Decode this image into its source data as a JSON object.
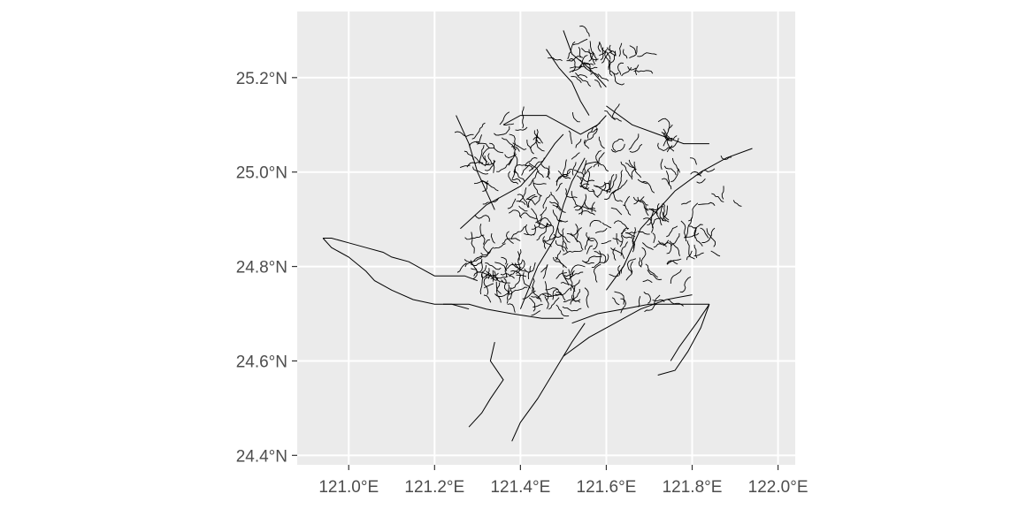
{
  "map": {
    "type": "river-network",
    "extent": {
      "lon": [
        120.88,
        122.04
      ],
      "lat": [
        24.38,
        25.34
      ]
    },
    "panel_background": "#ebebeb",
    "grid_color": "#ffffff",
    "line_color": "#000000"
  },
  "axes": {
    "x_ticks": [
      {
        "value": 121.0,
        "label": "121.0°E"
      },
      {
        "value": 121.2,
        "label": "121.2°E"
      },
      {
        "value": 121.4,
        "label": "121.4°E"
      },
      {
        "value": 121.6,
        "label": "121.6°E"
      },
      {
        "value": 121.8,
        "label": "121.8°E"
      },
      {
        "value": 122.0,
        "label": "122.0°E"
      }
    ],
    "y_ticks": [
      {
        "value": 24.4,
        "label": "24.4°N"
      },
      {
        "value": 24.6,
        "label": "24.6°N"
      },
      {
        "value": 24.8,
        "label": "24.8°N"
      },
      {
        "value": 25.0,
        "label": "25.0°N"
      },
      {
        "value": 25.2,
        "label": "25.2°N"
      }
    ]
  },
  "rivers": [
    {
      "name": "",
      "points": [
        [
          120.94,
          24.86
        ],
        [
          120.96,
          24.86
        ],
        [
          121.0,
          24.85
        ],
        [
          121.04,
          24.84
        ],
        [
          121.08,
          24.83
        ],
        [
          121.1,
          24.82
        ],
        [
          121.14,
          24.81
        ],
        [
          121.18,
          24.79
        ],
        [
          121.2,
          24.78
        ],
        [
          121.22,
          24.78
        ],
        [
          121.27,
          24.78
        ],
        [
          121.3,
          24.77
        ]
      ]
    },
    {
      "name": "",
      "points": [
        [
          120.94,
          24.86
        ],
        [
          120.96,
          24.84
        ],
        [
          121.0,
          24.82
        ],
        [
          121.04,
          24.79
        ],
        [
          121.06,
          24.77
        ],
        [
          121.1,
          24.75
        ],
        [
          121.15,
          24.73
        ],
        [
          121.2,
          24.72
        ],
        [
          121.24,
          24.72
        ],
        [
          121.28,
          24.71
        ]
      ]
    },
    {
      "name": "",
      "points": [
        [
          121.22,
          24.72
        ],
        [
          121.28,
          24.72
        ],
        [
          121.32,
          24.71
        ],
        [
          121.38,
          24.7
        ],
        [
          121.45,
          24.69
        ],
        [
          121.5,
          24.69
        ]
      ]
    },
    {
      "name": "",
      "points": [
        [
          121.34,
          24.64
        ],
        [
          121.33,
          24.6
        ],
        [
          121.36,
          24.56
        ],
        [
          121.33,
          24.52
        ],
        [
          121.31,
          24.49
        ],
        [
          121.28,
          24.46
        ]
      ]
    },
    {
      "name": "",
      "points": [
        [
          121.55,
          24.68
        ],
        [
          121.52,
          24.64
        ],
        [
          121.48,
          24.58
        ],
        [
          121.44,
          24.52
        ],
        [
          121.4,
          24.47
        ],
        [
          121.38,
          24.43
        ]
      ]
    },
    {
      "name": "",
      "points": [
        [
          121.52,
          24.68
        ],
        [
          121.58,
          24.7
        ],
        [
          121.64,
          24.71
        ],
        [
          121.7,
          24.72
        ],
        [
          121.76,
          24.72
        ],
        [
          121.84,
          24.72
        ]
      ]
    },
    {
      "name": "",
      "points": [
        [
          121.84,
          24.72
        ],
        [
          121.82,
          24.67
        ],
        [
          121.79,
          24.62
        ],
        [
          121.76,
          24.58
        ],
        [
          121.72,
          24.57
        ]
      ]
    },
    {
      "name": "",
      "points": [
        [
          121.84,
          24.72
        ],
        [
          121.81,
          24.68
        ],
        [
          121.77,
          24.63
        ],
        [
          121.75,
          24.6
        ]
      ]
    },
    {
      "name": "",
      "points": [
        [
          121.5,
          24.61
        ],
        [
          121.56,
          24.65
        ],
        [
          121.62,
          24.68
        ],
        [
          121.68,
          24.71
        ],
        [
          121.74,
          24.73
        ],
        [
          121.8,
          24.74
        ]
      ]
    },
    {
      "name": "",
      "points": [
        [
          121.4,
          24.71
        ],
        [
          121.44,
          24.8
        ],
        [
          121.48,
          24.86
        ],
        [
          121.5,
          24.93
        ],
        [
          121.52,
          24.98
        ],
        [
          121.55,
          25.03
        ]
      ]
    },
    {
      "name": "",
      "points": [
        [
          121.26,
          24.88
        ],
        [
          121.32,
          24.93
        ],
        [
          121.4,
          24.97
        ],
        [
          121.45,
          25.02
        ],
        [
          121.48,
          25.06
        ],
        [
          121.5,
          25.08
        ]
      ]
    },
    {
      "name": "",
      "points": [
        [
          121.6,
          24.75
        ],
        [
          121.64,
          24.8
        ],
        [
          121.68,
          24.88
        ],
        [
          121.72,
          24.92
        ],
        [
          121.76,
          24.96
        ],
        [
          121.82,
          25.0
        ],
        [
          121.88,
          25.03
        ],
        [
          121.94,
          25.05
        ]
      ]
    },
    {
      "name": "",
      "points": [
        [
          121.36,
          25.1
        ],
        [
          121.4,
          25.12
        ],
        [
          121.46,
          25.12
        ],
        [
          121.5,
          25.1
        ],
        [
          121.54,
          25.08
        ],
        [
          121.58,
          25.1
        ],
        [
          121.6,
          25.12
        ]
      ]
    },
    {
      "name": "",
      "points": [
        [
          121.46,
          25.26
        ],
        [
          121.49,
          25.22
        ],
        [
          121.52,
          25.19
        ],
        [
          121.54,
          25.15
        ],
        [
          121.56,
          25.12
        ]
      ]
    },
    {
      "name": "",
      "points": [
        [
          121.5,
          25.3
        ],
        [
          121.52,
          25.25
        ],
        [
          121.56,
          25.22
        ],
        [
          121.6,
          25.18
        ]
      ]
    },
    {
      "name": "",
      "points": [
        [
          121.25,
          25.12
        ],
        [
          121.28,
          25.06
        ],
        [
          121.3,
          25.0
        ],
        [
          121.32,
          24.96
        ],
        [
          121.34,
          24.92
        ]
      ]
    },
    {
      "name": "",
      "points": [
        [
          121.6,
          25.14
        ],
        [
          121.66,
          25.1
        ],
        [
          121.72,
          25.08
        ],
        [
          121.78,
          25.06
        ],
        [
          121.84,
          25.06
        ]
      ]
    }
  ]
}
